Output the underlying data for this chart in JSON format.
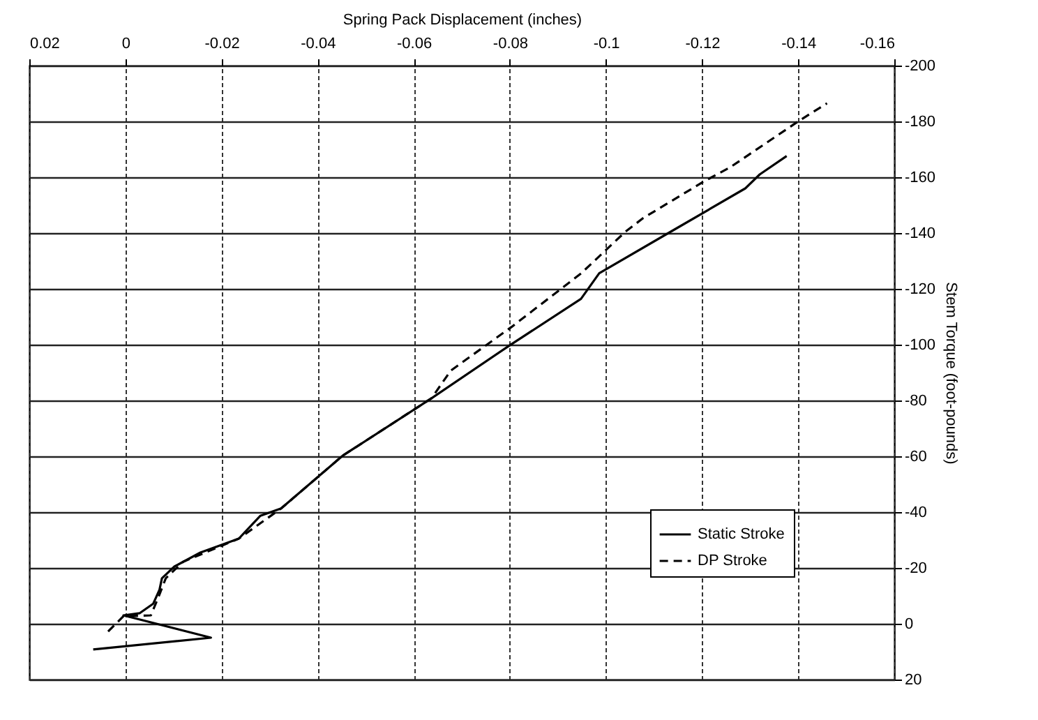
{
  "chart_data": {
    "type": "line",
    "xlabel": "Spring Pack Displacement (inches)",
    "ylabel": "Stem Torque (foot-pounds)",
    "xlim": [
      0.02,
      -0.16
    ],
    "xticks": [
      0.02,
      0,
      -0.02,
      -0.04,
      -0.06,
      -0.08,
      -0.1,
      -0.12,
      -0.14,
      -0.16
    ],
    "ylim": [
      20,
      -200
    ],
    "yticks": [
      20,
      0,
      -20,
      -40,
      -60,
      -80,
      -100,
      -120,
      -140,
      -160,
      -180,
      -200
    ],
    "grid": true,
    "legend": "bottom right",
    "marker": "none",
    "series": [
      {
        "name": "Static Stroke",
        "color": "#000000",
        "line_style": "solid",
        "x": [
          0.0067,
          -0.0178,
          0.0004,
          -0.003,
          -0.0058,
          -0.0071,
          -0.0076,
          -0.0102,
          -0.0156,
          -0.0236,
          -0.0281,
          -0.0324,
          -0.0452,
          -0.0637,
          -0.08,
          -0.0948,
          -0.0986,
          -0.114,
          -0.129,
          -0.132,
          -0.1376
        ],
        "values": [
          9.2,
          5,
          -3,
          -3.8,
          -7.2,
          -12.2,
          -16.3,
          -20.5,
          -25.5,
          -30.5,
          -38.7,
          -41.3,
          -60.2,
          -80.8,
          -99.8,
          -116.4,
          -125.6,
          -141,
          -156,
          -161,
          -167.6
        ]
      },
      {
        "name": "DP Stroke",
        "color": "#000000",
        "line_style": "dashed",
        "x": [
          0.0036,
          0.0004,
          -0.0053,
          -0.0071,
          -0.0084,
          -0.012,
          -0.0236,
          -0.0324,
          -0.0452,
          -0.0637,
          -0.0677,
          -0.0804,
          -0.0948,
          -0.104,
          -0.1077,
          -0.1204,
          -0.1258,
          -0.14,
          -0.146
        ],
        "values": [
          2.8,
          -2.7,
          -3,
          -10.5,
          -16.3,
          -22.2,
          -30.5,
          -41.3,
          -60.2,
          -80.8,
          -90.7,
          -106.4,
          -125.5,
          -140.4,
          -145.3,
          -158.5,
          -163.5,
          -180,
          -186.5
        ]
      }
    ]
  }
}
